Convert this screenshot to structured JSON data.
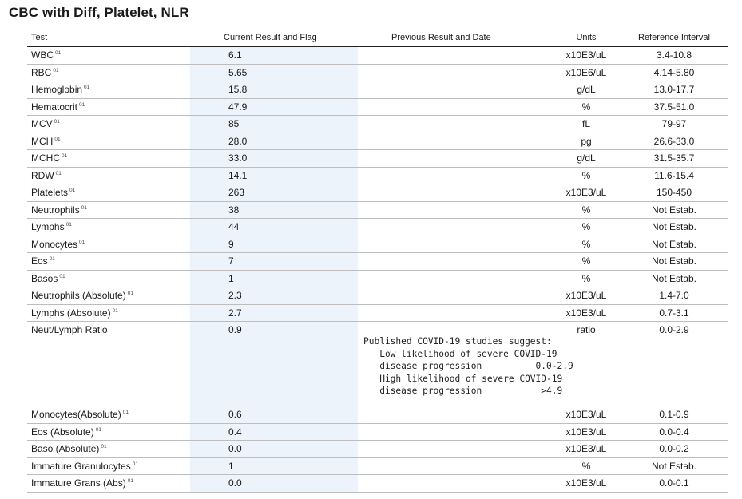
{
  "title": "CBC with Diff, Platelet, NLR",
  "headers": {
    "test": "Test",
    "current": "Current Result and Flag",
    "previous": "Previous Result and Date",
    "units": "Units",
    "reference": "Reference Interval"
  },
  "rows": [
    {
      "test": "WBC",
      "flag": "01",
      "value": "6.1",
      "units": "x10E3/uL",
      "ref": "3.4-10.8"
    },
    {
      "test": "RBC",
      "flag": "01",
      "value": "5.65",
      "units": "x10E6/uL",
      "ref": "4.14-5.80"
    },
    {
      "test": "Hemoglobin",
      "flag": "01",
      "value": "15.8",
      "units": "g/dL",
      "ref": "13.0-17.7"
    },
    {
      "test": "Hematocrit",
      "flag": "01",
      "value": "47.9",
      "units": "%",
      "ref": "37.5-51.0"
    },
    {
      "test": "MCV",
      "flag": "01",
      "value": "85",
      "units": "fL",
      "ref": "79-97"
    },
    {
      "test": "MCH",
      "flag": "01",
      "value": "28.0",
      "units": "pg",
      "ref": "26.6-33.0"
    },
    {
      "test": "MCHC",
      "flag": "01",
      "value": "33.0",
      "units": "g/dL",
      "ref": "31.5-35.7"
    },
    {
      "test": "RDW",
      "flag": "01",
      "value": "14.1",
      "units": "%",
      "ref": "11.6-15.4"
    },
    {
      "test": "Platelets",
      "flag": "01",
      "value": "263",
      "units": "x10E3/uL",
      "ref": "150-450"
    },
    {
      "test": "Neutrophils",
      "flag": "01",
      "value": "38",
      "units": "%",
      "ref": "Not Estab."
    },
    {
      "test": "Lymphs",
      "flag": "01",
      "value": "44",
      "units": "%",
      "ref": "Not Estab."
    },
    {
      "test": "Monocytes",
      "flag": "01",
      "value": "9",
      "units": "%",
      "ref": "Not Estab."
    },
    {
      "test": "Eos",
      "flag": "01",
      "value": "7",
      "units": "%",
      "ref": "Not Estab."
    },
    {
      "test": "Basos",
      "flag": "01",
      "value": "1",
      "units": "%",
      "ref": "Not Estab."
    },
    {
      "test": "Neutrophils (Absolute)",
      "flag": "01",
      "value": "2.3",
      "units": "x10E3/uL",
      "ref": "1.4-7.0"
    },
    {
      "test": "Lymphs (Absolute)",
      "flag": "01",
      "value": "2.7",
      "units": "x10E3/uL",
      "ref": "0.7-3.1"
    },
    {
      "test": "Neut/Lymph Ratio",
      "flag": "",
      "value": "0.9",
      "units": "ratio",
      "ref": "0.0-2.9",
      "note": "Published COVID-19 studies suggest:\n   Low likelihood of severe COVID-19\n   disease progression          0.0-2.9\n   High likelihood of severe COVID-19\n   disease progression           >4.9"
    },
    {
      "test": "Monocytes(Absolute)",
      "flag": "01",
      "value": "0.6",
      "units": "x10E3/uL",
      "ref": "0.1-0.9"
    },
    {
      "test": "Eos (Absolute)",
      "flag": "01",
      "value": "0.4",
      "units": "x10E3/uL",
      "ref": "0.0-0.4"
    },
    {
      "test": "Baso (Absolute)",
      "flag": "01",
      "value": "0.0",
      "units": "x10E3/uL",
      "ref": "0.0-0.2"
    },
    {
      "test": "Immature Granulocytes",
      "flag": "01",
      "value": "1",
      "units": "%",
      "ref": "Not Estab."
    },
    {
      "test": "Immature Grans (Abs)",
      "flag": "01",
      "value": "0.0",
      "units": "x10E3/uL",
      "ref": "0.0-0.1"
    }
  ]
}
